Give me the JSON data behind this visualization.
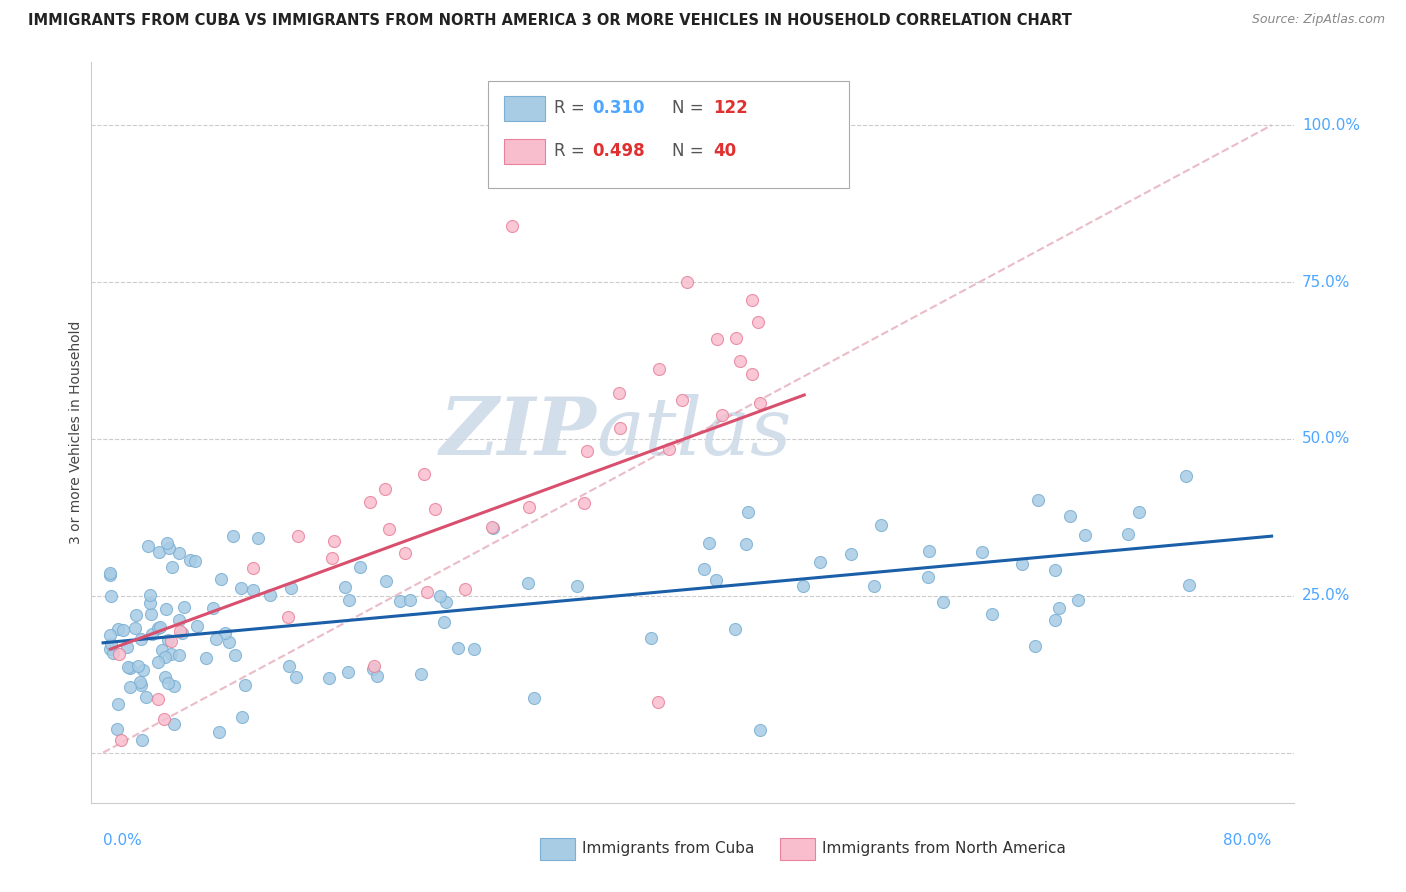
{
  "title": "IMMIGRANTS FROM CUBA VS IMMIGRANTS FROM NORTH AMERICA 3 OR MORE VEHICLES IN HOUSEHOLD CORRELATION CHART",
  "source": "Source: ZipAtlas.com",
  "ylabel": "3 or more Vehicles in Household",
  "legend_blue_R": "0.310",
  "legend_blue_N": "122",
  "legend_pink_R": "0.498",
  "legend_pink_N": "40",
  "blue_color": "#a8cce4",
  "blue_edge_color": "#7bafd4",
  "pink_color": "#f9bece",
  "pink_edge_color": "#e8829a",
  "blue_line_color": "#1a5fa8",
  "pink_line_color": "#d94f6e",
  "diag_color": "#e0a0b0",
  "watermark_color": "#ccd9e8",
  "grid_color": "#cccccc",
  "right_label_color": "#4da6ff",
  "bottom_label_color": "#4da6ff"
}
